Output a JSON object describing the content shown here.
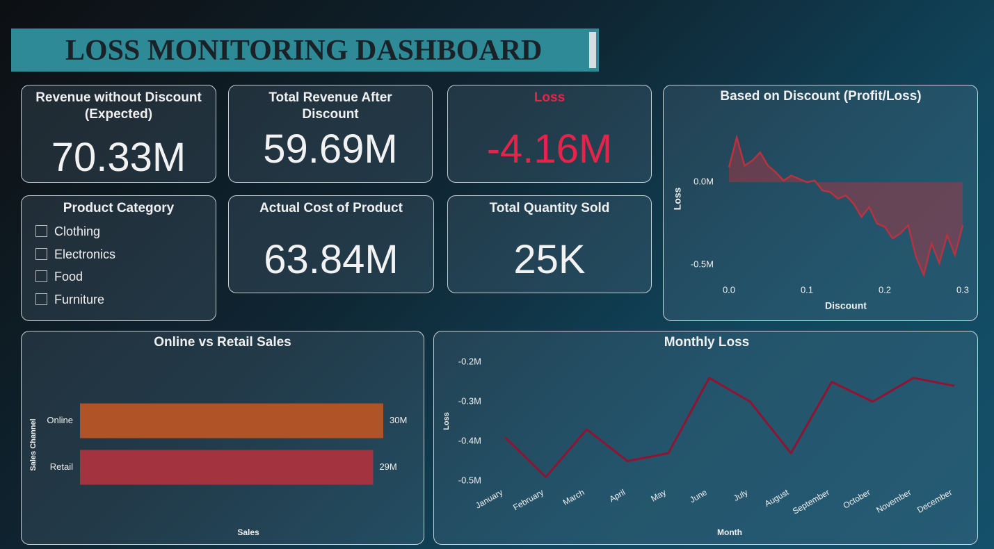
{
  "header": {
    "title": "LOSS MONITORING DASHBOARD"
  },
  "kpis": [
    {
      "label": "Revenue without Discount (Expected)",
      "value": "70.33M"
    },
    {
      "label": "Total Revenue After Discount",
      "value": "59.69M"
    },
    {
      "label": "Loss",
      "value": "-4.16M"
    },
    {
      "label": "Actual Cost of Product",
      "value": "63.84M"
    },
    {
      "label": "Total Quantity Sold",
      "value": "25K"
    }
  ],
  "slicer": {
    "title": "Product Category",
    "items": [
      "Clothing",
      "Electronics",
      "Food",
      "Furniture"
    ]
  },
  "chart_data": [
    {
      "type": "area",
      "title": "Based on Discount (Profit/Loss)",
      "x_label": "Discount",
      "y_label": "Loss",
      "color": "#b8323f",
      "x": [
        0,
        0.01,
        0.02,
        0.03,
        0.04,
        0.05,
        0.06,
        0.07,
        0.08,
        0.09,
        0.1,
        0.11,
        0.12,
        0.13,
        0.14,
        0.15,
        0.16,
        0.17,
        0.18,
        0.19,
        0.2,
        0.21,
        0.22,
        0.23,
        0.24,
        0.25,
        0.26,
        0.27,
        0.28,
        0.29,
        0.3
      ],
      "values": [
        0.09,
        0.27,
        0.1,
        0.13,
        0.18,
        0.1,
        0.06,
        0.01,
        0.04,
        0.02,
        0,
        0.01,
        -0.05,
        -0.06,
        -0.1,
        -0.08,
        -0.13,
        -0.21,
        -0.15,
        -0.25,
        -0.27,
        -0.34,
        -0.31,
        -0.26,
        -0.45,
        -0.56,
        -0.37,
        -0.49,
        -0.32,
        -0.44,
        -0.26
      ],
      "xlim": [
        0,
        0.3
      ],
      "xticks": [
        {
          "value": 0,
          "label": "0.0"
        },
        0.1,
        0.2,
        0.3
      ],
      "ylim": [
        -0.6,
        0.45
      ],
      "yticks": [
        {
          "value": 0,
          "label": "0.0M"
        },
        {
          "value": -0.5,
          "label": "-0.5M"
        }
      ]
    },
    {
      "type": "hbar",
      "title": "Online vs Retail Sales",
      "x_label": "Sales",
      "y_label": "Sales Channel",
      "categories": [
        "Online",
        "Retail"
      ],
      "values": [
        30,
        29
      ],
      "value_labels": [
        "30M",
        "29M"
      ],
      "colors": [
        "#b05327",
        "#a3343f"
      ],
      "xlim": [
        0,
        30
      ]
    },
    {
      "type": "line",
      "title": "Monthly Loss",
      "x_label": "Month",
      "y_label": "Loss",
      "color": "#8f1432",
      "categories": [
        "January",
        "February",
        "March",
        "April",
        "May",
        "June",
        "July",
        "August",
        "September",
        "October",
        "November",
        "December"
      ],
      "values": [
        -0.39,
        -0.49,
        -0.37,
        -0.45,
        -0.43,
        -0.24,
        -0.3,
        -0.43,
        -0.25,
        -0.3,
        -0.24,
        -0.26
      ],
      "ylim": [
        -0.52,
        -0.18
      ],
      "yticks": [
        {
          "value": -0.2,
          "label": "-0.2M"
        },
        {
          "value": -0.3,
          "label": "-0.3M"
        },
        {
          "value": -0.4,
          "label": "-0.4M"
        },
        {
          "value": -0.5,
          "label": "-0.5M"
        }
      ]
    }
  ]
}
